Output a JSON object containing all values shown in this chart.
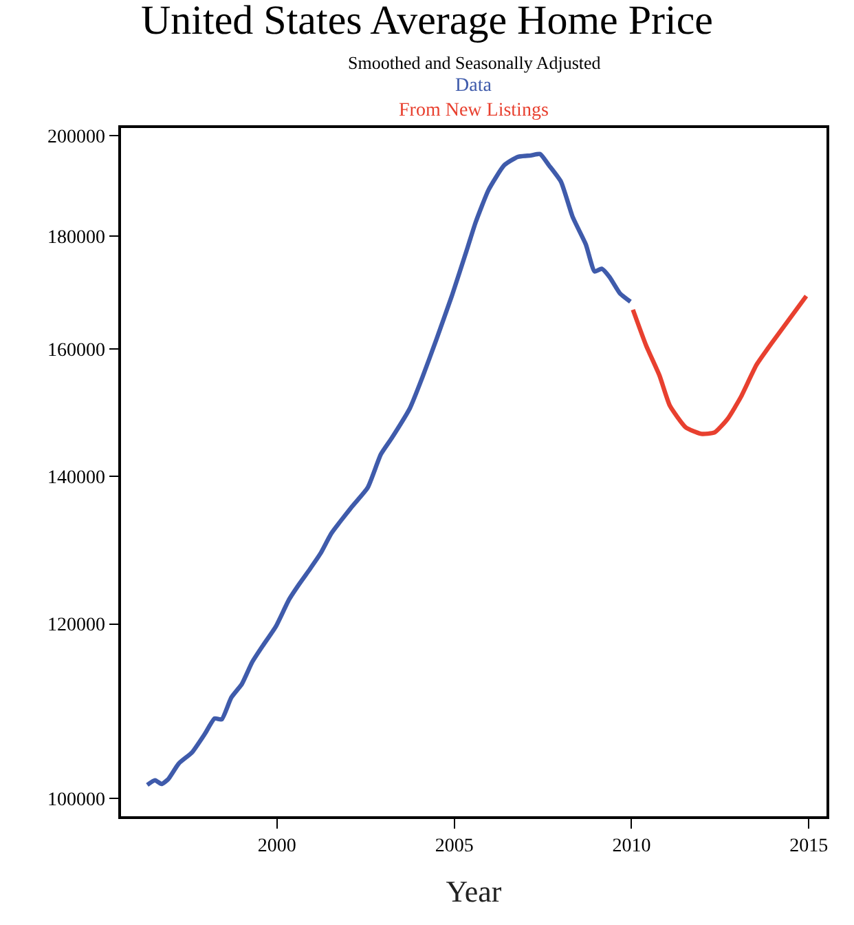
{
  "chart_data": {
    "type": "line",
    "title": "United States Average Home Price",
    "subtitle": "Smoothed and Seasonally Adjusted",
    "xlabel": "Year",
    "log": "y",
    "legend": false,
    "marker": "none",
    "line_style": "solid",
    "xlim": [
      1995.6,
      2015.5
    ],
    "xticks": [
      2000,
      2005,
      2010,
      2015
    ],
    "ylim": [
      98130,
      201600
    ],
    "yticks": [
      100000,
      120000,
      140000,
      160000,
      180000,
      200000
    ],
    "series": [
      {
        "name": "Data",
        "color": "#3f5bab",
        "x": [
          1996.34,
          1996.56,
          1996.74,
          1996.93,
          1997.23,
          1997.6,
          1997.97,
          1998.24,
          1998.44,
          1998.71,
          1999.01,
          1999.3,
          1999.6,
          1999.97,
          2000.34,
          2000.64,
          2000.93,
          2001.23,
          2001.53,
          2001.82,
          2002.12,
          2002.56,
          2002.93,
          2003.23,
          2003.75,
          2004.12,
          2004.49,
          2004.93,
          2005.38,
          2005.6,
          2005.97,
          2006.41,
          2006.79,
          2007.16,
          2007.42,
          2007.67,
          2008.01,
          2008.34,
          2008.71,
          2008.96,
          2009.16,
          2009.38,
          2009.67,
          2009.97
        ],
        "values": [
          101400,
          101900,
          101500,
          102000,
          103700,
          104900,
          107000,
          108700,
          108600,
          111100,
          112700,
          115300,
          117300,
          119700,
          123100,
          125200,
          127100,
          129200,
          131900,
          133800,
          135700,
          138400,
          143300,
          145700,
          150400,
          155600,
          161500,
          169100,
          178000,
          182600,
          189000,
          193900,
          195600,
          195900,
          196200,
          193900,
          190600,
          183700,
          178500,
          173500,
          174000,
          172500,
          169600,
          168100
        ]
      },
      {
        "name": "From New Listings",
        "color": "#e8402f",
        "x": [
          2010.04,
          2010.41,
          2010.79,
          2011.08,
          2011.53,
          2011.97,
          2012.34,
          2012.71,
          2013.08,
          2013.53,
          2013.97,
          2014.42,
          2014.93
        ],
        "values": [
          166700,
          160600,
          155600,
          150800,
          147400,
          146400,
          146600,
          148700,
          152100,
          157400,
          161100,
          164800,
          169100
        ]
      }
    ]
  }
}
